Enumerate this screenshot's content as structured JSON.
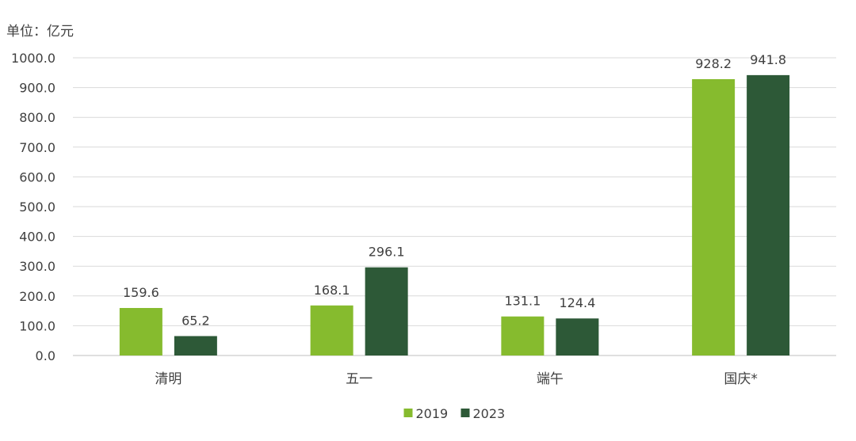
{
  "chart_data": {
    "type": "bar",
    "title": "",
    "unit_label": "单位：亿元",
    "xlabel": "",
    "ylabel": "",
    "ylim": [
      0,
      1000
    ],
    "yticks": [
      "0.0",
      "100.0",
      "200.0",
      "300.0",
      "400.0",
      "500.0",
      "600.0",
      "700.0",
      "800.0",
      "900.0",
      "1000.0"
    ],
    "categories": [
      "清明",
      "五一",
      "端午",
      "国庆*"
    ],
    "series": [
      {
        "name": "2019",
        "values": [
          159.6,
          168.1,
          131.1,
          928.2
        ],
        "labels": [
          "159.6",
          "168.1",
          "131.1",
          "928.2"
        ],
        "color": "#86bb2e"
      },
      {
        "name": "2023",
        "values": [
          65.2,
          296.1,
          124.4,
          941.8
        ],
        "labels": [
          "65.2",
          "296.1",
          "124.4",
          "941.8"
        ],
        "color": "#2d5937"
      }
    ],
    "grid": true,
    "legend_position": "bottom-center"
  }
}
